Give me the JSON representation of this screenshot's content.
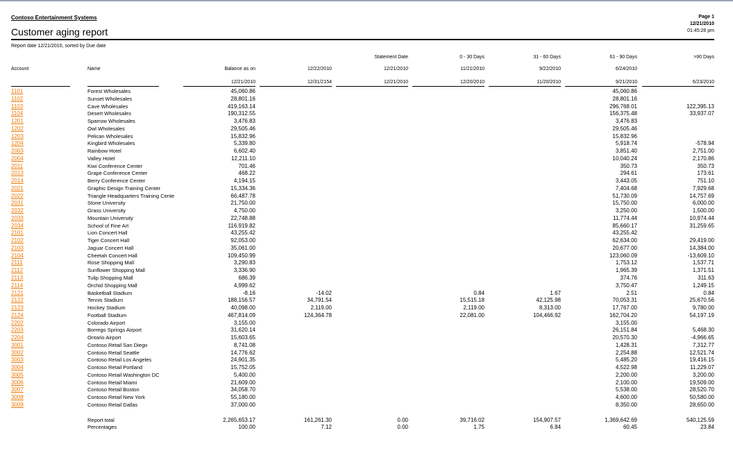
{
  "header": {
    "company": "Contoso Entertainment Systems",
    "title": "Customer aging report",
    "page": "Page 1",
    "date": "12/21/2010",
    "time": "01:45:28 pm",
    "subtitle": "Report date 12/21/2010, sorted by Due date"
  },
  "columns": {
    "account": "Account",
    "name": "Name",
    "balance": {
      "top": "",
      "mid": "Balance as on",
      "bottom": "12/21/2010"
    },
    "c1": {
      "top": "",
      "mid": "12/22/2010",
      "bottom": "12/31/2154"
    },
    "c2": {
      "top": "Statement Date",
      "mid": "12/21/2010",
      "bottom": "12/21/2010"
    },
    "c3": {
      "top": "0 - 30 Days",
      "mid": "11/21/2010",
      "bottom": "12/20/2010"
    },
    "c4": {
      "top": "31 - 60 Days",
      "mid": "9/22/2010",
      "bottom": "11/20/2010"
    },
    "c5": {
      "top": "61 - 90 Days",
      "mid": "6/24/2010",
      "bottom": "9/21/2010"
    },
    "c6": {
      "top": ">90 Days",
      "mid": "",
      "bottom": "6/23/2010"
    }
  },
  "accent_color": "#f07800",
  "rows": [
    [
      "1101",
      "Forest Wholesales",
      "45,060.86",
      "",
      "",
      "",
      "",
      "45,060.86",
      ""
    ],
    [
      "1102",
      "Sunset Wholesales",
      "28,801.16",
      "",
      "",
      "",
      "",
      "28,801.16",
      ""
    ],
    [
      "1103",
      "Cave Wholesales",
      "419,163.14",
      "",
      "",
      "",
      "",
      "296,768.01",
      "122,395.13"
    ],
    [
      "1104",
      "Desert Wholesales",
      "190,312.55",
      "",
      "",
      "",
      "",
      "156,375.48",
      "33,937.07"
    ],
    [
      "1201",
      "Sparrow Wholesales",
      "3,476.83",
      "",
      "",
      "",
      "",
      "3,476.83",
      ""
    ],
    [
      "1202",
      "Owl Wholesales",
      "29,505.46",
      "",
      "",
      "",
      "",
      "29,505.46",
      ""
    ],
    [
      "1203",
      "Pelican Wholesales",
      "15,832.96",
      "",
      "",
      "",
      "",
      "15,832.96",
      ""
    ],
    [
      "1204",
      "Kingbird Wholesales",
      "5,339.80",
      "",
      "",
      "",
      "",
      "5,918.74",
      "-578.94"
    ],
    [
      "2003",
      "Rainbow Hotel",
      "6,602.40",
      "",
      "",
      "",
      "",
      "3,851.40",
      "2,751.00"
    ],
    [
      "2004",
      "Valley Hotel",
      "12,211.10",
      "",
      "",
      "",
      "",
      "10,040.24",
      "2,170.86"
    ],
    [
      "2011",
      "Kiwi Conference Center",
      "701.46",
      "",
      "",
      "",
      "",
      "350.73",
      "350.73"
    ],
    [
      "2013",
      "Grape Conference Center",
      "468.22",
      "",
      "",
      "",
      "",
      "294.61",
      "173.61"
    ],
    [
      "2014",
      "Berry Conference Center",
      "4,194.15",
      "",
      "",
      "",
      "",
      "3,443.05",
      "751.10"
    ],
    [
      "2021",
      "Graphic Design Training Center",
      "15,334.36",
      "",
      "",
      "",
      "",
      "7,404.68",
      "7,929.68"
    ],
    [
      "2022",
      "Triangle Headquarters Training Cente",
      "66,487.78",
      "",
      "",
      "",
      "",
      "51,730.09",
      "14,757.69"
    ],
    [
      "2031",
      "Stone University",
      "21,750.00",
      "",
      "",
      "",
      "",
      "15,750.00",
      "6,000.00"
    ],
    [
      "2032",
      "Grass University",
      "4,750.00",
      "",
      "",
      "",
      "",
      "3,250.00",
      "1,500.00"
    ],
    [
      "2033",
      "Mountain University",
      "22,748.88",
      "",
      "",
      "",
      "",
      "11,774.44",
      "10,974.44"
    ],
    [
      "2034",
      "School of Fine Art",
      "116,919.82",
      "",
      "",
      "",
      "",
      "85,660.17",
      "31,259.65"
    ],
    [
      "2101",
      "Lion Concert Hall",
      "43,255.42",
      "",
      "",
      "",
      "",
      "43,255.42",
      ""
    ],
    [
      "2102",
      "Tiger Concert Hall",
      "92,053.00",
      "",
      "",
      "",
      "",
      "62,634.00",
      "29,419.00"
    ],
    [
      "2103",
      "Jaguar Concert Hall",
      "35,061.00",
      "",
      "",
      "",
      "",
      "20,677.00",
      "14,384.00"
    ],
    [
      "2104",
      "Cheetah Concert Hall",
      "109,450.99",
      "",
      "",
      "",
      "",
      "123,060.09",
      "-13,609.10"
    ],
    [
      "2111",
      "Rose Shopping Mall",
      "3,290.83",
      "",
      "",
      "",
      "",
      "1,753.12",
      "1,537.71"
    ],
    [
      "2112",
      "Sunflower Shopping Mall",
      "3,336.90",
      "",
      "",
      "",
      "",
      "1,965.39",
      "1,371.51"
    ],
    [
      "2113",
      "Tulip Shopping Mall",
      "686.39",
      "",
      "",
      "",
      "",
      "374.76",
      "311.63"
    ],
    [
      "2114",
      "Orchid Shopping Mall",
      "4,999.62",
      "",
      "",
      "",
      "",
      "3,750.47",
      "1,249.15"
    ],
    [
      "2121",
      "Basketball Stadium",
      "-8.16",
      "-14.02",
      "",
      "0.84",
      "1.67",
      "2.51",
      "0.84"
    ],
    [
      "2122",
      "Tennis Stadium",
      "188,156.57",
      "34,791.54",
      "",
      "15,515.18",
      "42,125.98",
      "70,053.31",
      "25,670.56"
    ],
    [
      "2123",
      "Hockey Stadium",
      "40,098.00",
      "2,119.00",
      "",
      "2,119.00",
      "8,313.00",
      "17,767.00",
      "9,780.00"
    ],
    [
      "2124",
      "Football Stadium",
      "467,814.09",
      "124,364.78",
      "",
      "22,081.00",
      "104,466.92",
      "162,704.20",
      "54,197.19"
    ],
    [
      "2202",
      "Colorado Airport",
      "3,155.00",
      "",
      "",
      "",
      "",
      "3,155.00",
      ""
    ],
    [
      "2203",
      "Borrego Springs Airport",
      "31,620.14",
      "",
      "",
      "",
      "",
      "26,151.84",
      "5,468.30"
    ],
    [
      "2204",
      "Ontario Airport",
      "15,603.65",
      "",
      "",
      "",
      "",
      "20,570.30",
      "-4,966.65"
    ],
    [
      "3001",
      "Contoso Retail San Diego",
      "8,741.08",
      "",
      "",
      "",
      "",
      "1,428.31",
      "7,312.77"
    ],
    [
      "3002",
      "Contoso Retail Seattle",
      "14,776.62",
      "",
      "",
      "",
      "",
      "2,254.88",
      "12,521.74"
    ],
    [
      "3003",
      "Contoso Retail Los Angeles",
      "24,901.35",
      "",
      "",
      "",
      "",
      "5,485.20",
      "19,416.15"
    ],
    [
      "3004",
      "Contoso Retail Portland",
      "15,752.05",
      "",
      "",
      "",
      "",
      "4,522.98",
      "11,229.07"
    ],
    [
      "3005",
      "Contoso Retail Washington DC",
      "5,400.00",
      "",
      "",
      "",
      "",
      "2,200.00",
      "3,200.00"
    ],
    [
      "3006",
      "Contoso Retail Miami",
      "21,609.00",
      "",
      "",
      "",
      "",
      "2,100.00",
      "19,509.00"
    ],
    [
      "3007",
      "Contoso Retail Boston",
      "34,058.70",
      "",
      "",
      "",
      "",
      "5,538.00",
      "28,520.70"
    ],
    [
      "3008",
      "Contoso Retail New York",
      "55,180.00",
      "",
      "",
      "",
      "",
      "4,600.00",
      "50,580.00"
    ],
    [
      "3009",
      "Contoso Retail Dallas",
      "37,000.00",
      "",
      "",
      "",
      "",
      "8,350.00",
      "28,650.00"
    ]
  ],
  "totals": [
    [
      "",
      "Report total",
      "2,265,653.17",
      "161,261.30",
      "0.00",
      "39,716.02",
      "154,907.57",
      "1,369,642.69",
      "540,125.59"
    ],
    [
      "",
      "Percentages",
      "100.00",
      "7.12",
      "0.00",
      "1.75",
      "6.84",
      "60.45",
      "23.84"
    ]
  ]
}
